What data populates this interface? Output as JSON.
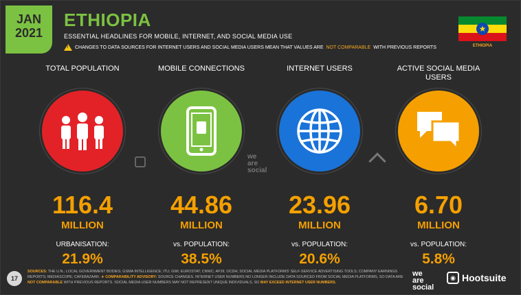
{
  "header": {
    "month": "JAN",
    "year": "2021",
    "title": "ETHIOPIA",
    "subtitle": "ESSENTIAL HEADLINES FOR MOBILE, INTERNET, AND SOCIAL MEDIA USE",
    "warning_pre": "CHANGES TO DATA SOURCES FOR INTERNET USERS AND SOCIAL MEDIA USERS MEAN THAT VALUES ARE",
    "warning_highlight": "NOT COMPARABLE",
    "warning_post": "WITH PREVIOUS REPORTS",
    "flag_label": "ETHIOPIA"
  },
  "stats": [
    {
      "label": "TOTAL POPULATION",
      "value": "116.4",
      "unit": "MILLION",
      "sub_label": "URBANISATION:",
      "sub_value": "21.9%",
      "icon": "people-icon",
      "color": "#e32227"
    },
    {
      "label": "MOBILE CONNECTIONS",
      "value": "44.86",
      "unit": "MILLION",
      "sub_label": "vs. POPULATION:",
      "sub_value": "38.5%",
      "icon": "mobile-phone-icon",
      "color": "#7cc242"
    },
    {
      "label": "INTERNET USERS",
      "value": "23.96",
      "unit": "MILLION",
      "sub_label": "vs. POPULATION:",
      "sub_value": "20.6%",
      "icon": "globe-icon",
      "color": "#1a73d8"
    },
    {
      "label": "ACTIVE SOCIAL MEDIA USERS",
      "value": "6.70",
      "unit": "MILLION",
      "sub_label": "vs. POPULATION:",
      "sub_value": "5.8%",
      "icon": "chat-bubbles-icon",
      "color": "#f5a000"
    }
  ],
  "watermark": {
    "was_line1": "we",
    "was_line2": "are",
    "was_line3": "social"
  },
  "footer": {
    "page": "17",
    "sources_label": "SOURCES:",
    "sources_text": "THE U.N.; LOCAL GOVERNMENT BODIES; GSMA INTELLIGENCE; ITU; GWI; EUROSTAT; CNNIC; APJII; OCDH; SOCIAL MEDIA PLATFORMS' SELF-SERVICE ADVERTISING TOOLS; COMPANY EARNINGS REPORTS; MEDIASCOPE; CAFEBAZAAR.",
    "advisory_label": "COMPARABILITY ADVISORY:",
    "advisory_text": "SOURCE CHANGES. INTERNET USER NUMBERS NO LONGER INCLUDE DATA SOURCED FROM SOCIAL MEDIA PLATFORMS, SO DATA ARE",
    "advisory_hl1": "NOT COMPARABLE",
    "advisory_text2": "WITH PREVIOUS REPORTS. SOCIAL MEDIA USER NUMBERS MAY NOT REPRESENT UNIQUE INDIVIDUALS, SO",
    "advisory_hl2": "MAY EXCEED INTERNET USER NUMBERS.",
    "brand1_l1": "we",
    "brand1_l2": "are",
    "brand1_l3": "social",
    "brand2": "Hootsuite"
  }
}
